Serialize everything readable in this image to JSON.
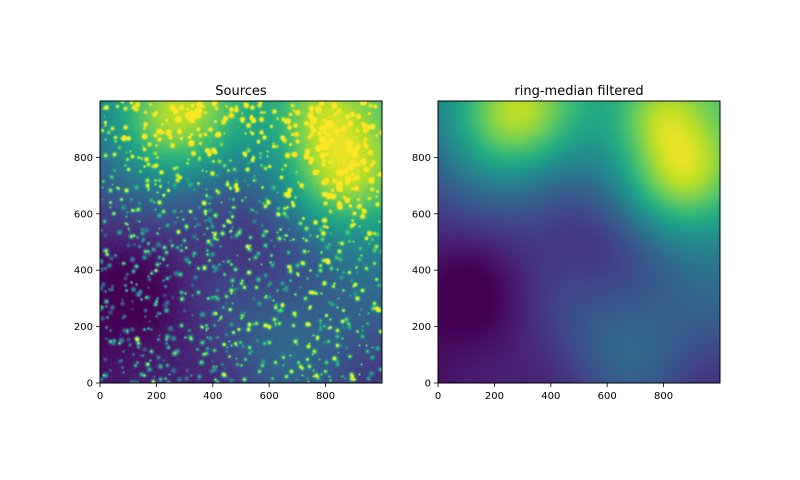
{
  "colors": {
    "colormap": "viridis",
    "background": "#ffffff",
    "axis": "#000000"
  },
  "chart_data": [
    {
      "type": "heatmap",
      "title": "Sources",
      "xlabel": "",
      "ylabel": "",
      "xlim": [
        0,
        1000
      ],
      "ylim": [
        0,
        1000
      ],
      "xticks": [
        "0",
        "200",
        "400",
        "600",
        "800"
      ],
      "yticks": [
        "0",
        "200",
        "400",
        "600",
        "800"
      ],
      "colormap": "viridis",
      "grid": false,
      "legend": "none",
      "background_blobs": [
        {
          "x": 260,
          "y": 950,
          "intensity": 1.0,
          "width": 150
        },
        {
          "x": 880,
          "y": 740,
          "intensity": 0.95,
          "width": 140
        },
        {
          "x": 780,
          "y": 960,
          "intensity": 0.7,
          "width": 110
        },
        {
          "x": 650,
          "y": 100,
          "intensity": 0.55,
          "width": 170
        },
        {
          "x": 560,
          "y": 520,
          "intensity": 0.15,
          "width": 150
        },
        {
          "x": 100,
          "y": 350,
          "intensity": 0.1,
          "width": 200
        }
      ],
      "point_sources": true
    },
    {
      "type": "heatmap",
      "title": "ring-median filtered",
      "xlabel": "",
      "ylabel": "",
      "xlim": [
        0,
        1000
      ],
      "ylim": [
        0,
        1000
      ],
      "xticks": [
        "0",
        "200",
        "400",
        "600",
        "800"
      ],
      "yticks": [
        "0",
        "200",
        "400",
        "600",
        "800"
      ],
      "colormap": "viridis",
      "grid": false,
      "legend": "none",
      "background_blobs": [
        {
          "x": 260,
          "y": 950,
          "intensity": 1.0,
          "width": 150
        },
        {
          "x": 880,
          "y": 740,
          "intensity": 0.95,
          "width": 140
        },
        {
          "x": 780,
          "y": 960,
          "intensity": 0.7,
          "width": 110
        },
        {
          "x": 650,
          "y": 100,
          "intensity": 0.55,
          "width": 170
        },
        {
          "x": 560,
          "y": 520,
          "intensity": 0.15,
          "width": 150
        },
        {
          "x": 100,
          "y": 350,
          "intensity": 0.1,
          "width": 200
        }
      ],
      "point_sources": false
    }
  ]
}
